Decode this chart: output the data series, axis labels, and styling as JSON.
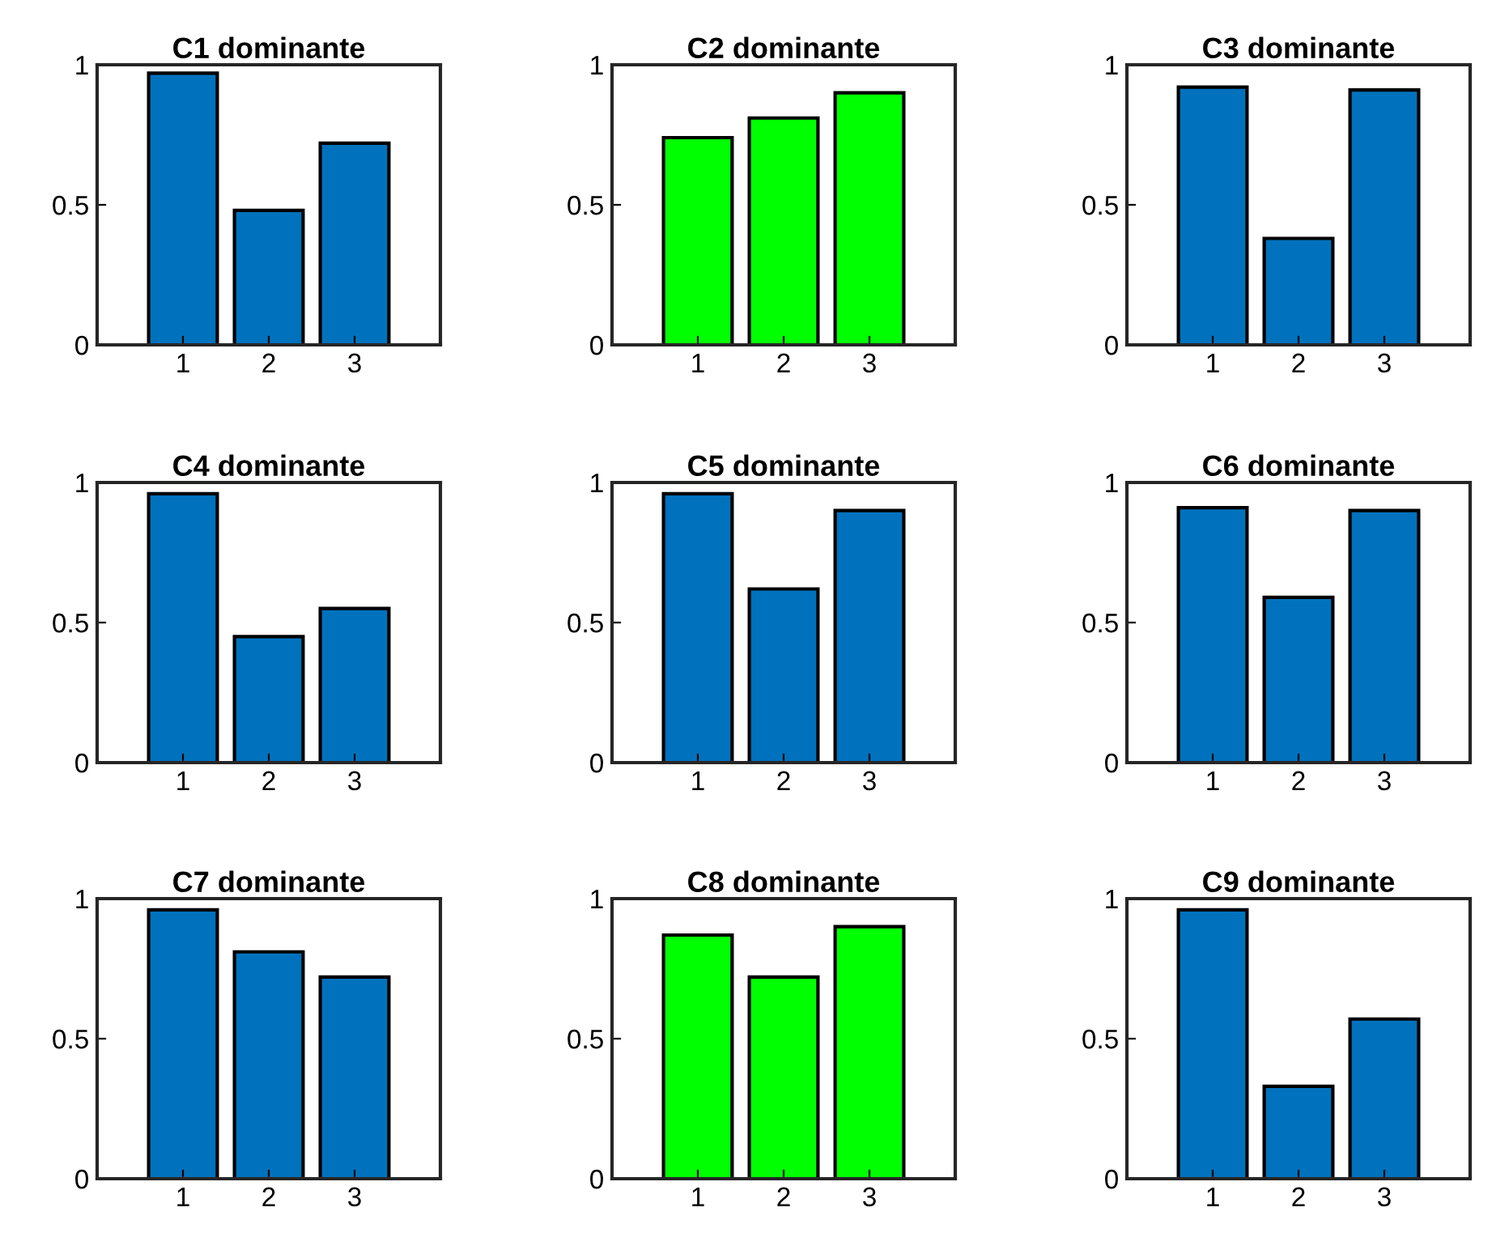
{
  "chart_data": [
    {
      "type": "bar",
      "title": "C1 dominante",
      "categories": [
        "1",
        "2",
        "3"
      ],
      "values": [
        0.97,
        0.48,
        0.72
      ],
      "color": "#0072bd",
      "ylim": [
        0,
        1
      ],
      "yticks": [
        0,
        0.5,
        1
      ],
      "grid": false
    },
    {
      "type": "bar",
      "title": "C2 dominante",
      "categories": [
        "1",
        "2",
        "3"
      ],
      "values": [
        0.74,
        0.81,
        0.9
      ],
      "color": "#00ff00",
      "ylim": [
        0,
        1
      ],
      "yticks": [
        0,
        0.5,
        1
      ],
      "grid": false
    },
    {
      "type": "bar",
      "title": "C3 dominante",
      "categories": [
        "1",
        "2",
        "3"
      ],
      "values": [
        0.92,
        0.38,
        0.91
      ],
      "color": "#0072bd",
      "ylim": [
        0,
        1
      ],
      "yticks": [
        0,
        0.5,
        1
      ],
      "grid": false
    },
    {
      "type": "bar",
      "title": "C4 dominante",
      "categories": [
        "1",
        "2",
        "3"
      ],
      "values": [
        0.96,
        0.45,
        0.55
      ],
      "color": "#0072bd",
      "ylim": [
        0,
        1
      ],
      "yticks": [
        0,
        0.5,
        1
      ],
      "grid": false
    },
    {
      "type": "bar",
      "title": "C5 dominante",
      "categories": [
        "1",
        "2",
        "3"
      ],
      "values": [
        0.96,
        0.62,
        0.9
      ],
      "color": "#0072bd",
      "ylim": [
        0,
        1
      ],
      "yticks": [
        0,
        0.5,
        1
      ],
      "grid": false
    },
    {
      "type": "bar",
      "title": "C6 dominante",
      "categories": [
        "1",
        "2",
        "3"
      ],
      "values": [
        0.91,
        0.59,
        0.9
      ],
      "color": "#0072bd",
      "ylim": [
        0,
        1
      ],
      "yticks": [
        0,
        0.5,
        1
      ],
      "grid": false
    },
    {
      "type": "bar",
      "title": "C7 dominante",
      "categories": [
        "1",
        "2",
        "3"
      ],
      "values": [
        0.96,
        0.81,
        0.72
      ],
      "color": "#0072bd",
      "ylim": [
        0,
        1
      ],
      "yticks": [
        0,
        0.5,
        1
      ],
      "grid": false
    },
    {
      "type": "bar",
      "title": "C8 dominante",
      "categories": [
        "1",
        "2",
        "3"
      ],
      "values": [
        0.87,
        0.72,
        0.9
      ],
      "color": "#00ff00",
      "ylim": [
        0,
        1
      ],
      "yticks": [
        0,
        0.5,
        1
      ],
      "grid": false
    },
    {
      "type": "bar",
      "title": "C9 dominante",
      "categories": [
        "1",
        "2",
        "3"
      ],
      "values": [
        0.96,
        0.33,
        0.57
      ],
      "color": "#0072bd",
      "ylim": [
        0,
        1
      ],
      "yticks": [
        0,
        0.5,
        1
      ],
      "grid": false
    }
  ]
}
